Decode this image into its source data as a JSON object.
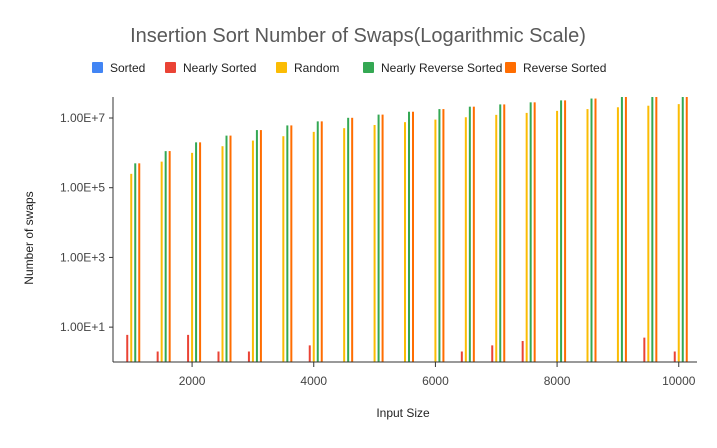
{
  "chart_data": {
    "type": "bar",
    "title": "Insertion Sort Number of Swaps(Logarithmic Scale)",
    "xlabel": "Input Size",
    "ylabel": "Number of swaps",
    "yscale": "log",
    "ylim": [
      1,
      40000000
    ],
    "xlim": [
      700,
      10300
    ],
    "x_ticks": [
      2000,
      4000,
      6000,
      8000,
      10000
    ],
    "x_tick_labels": [
      "2000",
      "4000",
      "6000",
      "8000",
      "10000"
    ],
    "y_ticks": [
      10,
      1000,
      100000,
      10000000
    ],
    "y_tick_labels": [
      "1.00E+1",
      "1.00E+3",
      "1.00E+5",
      "1.00E+7"
    ],
    "legend_position": "top",
    "grid": "none",
    "x": [
      1000,
      1500,
      2000,
      2500,
      3000,
      3500,
      4000,
      4500,
      5000,
      5500,
      6000,
      6500,
      7000,
      7500,
      8000,
      8500,
      9000,
      9500,
      10000
    ],
    "series": [
      {
        "name": "Sorted",
        "color": "#4285f4",
        "values": [
          0,
          0,
          0,
          0,
          0,
          0,
          0,
          0,
          0,
          0,
          0,
          0,
          0,
          0,
          0,
          0,
          0,
          0,
          0
        ]
      },
      {
        "name": "Nearly Sorted",
        "color": "#ea4335",
        "values": [
          6,
          2,
          6,
          2,
          2,
          0,
          3,
          0,
          0,
          0,
          0,
          2,
          3,
          4,
          0,
          0,
          0,
          5,
          2
        ]
      },
      {
        "name": "Random",
        "color": "#fbbc04",
        "values": [
          250000,
          560000,
          1000000,
          1550000,
          2250000,
          3000000,
          4000000,
          5100000,
          6300000,
          7600000,
          9000000,
          10500000,
          12300000,
          14000000,
          16000000,
          18000000,
          20300000,
          22500000,
          25000000
        ]
      },
      {
        "name": "Nearly Reverse Sorted",
        "color": "#34a853",
        "values": [
          500000,
          1120000,
          2000000,
          3120000,
          4500000,
          6120000,
          8000000,
          10120000,
          12500000,
          15120000,
          18000000,
          21120000,
          24500000,
          28120000,
          32000000,
          36120000,
          40500000,
          45120000,
          50000000
        ]
      },
      {
        "name": "Reverse Sorted",
        "color": "#ff6d01",
        "values": [
          500000,
          1125000,
          2000000,
          3125000,
          4500000,
          6125000,
          8000000,
          10125000,
          12500000,
          15125000,
          18000000,
          21125000,
          24500000,
          28125000,
          32000000,
          36125000,
          40500000,
          45125000,
          50000000
        ]
      }
    ]
  }
}
